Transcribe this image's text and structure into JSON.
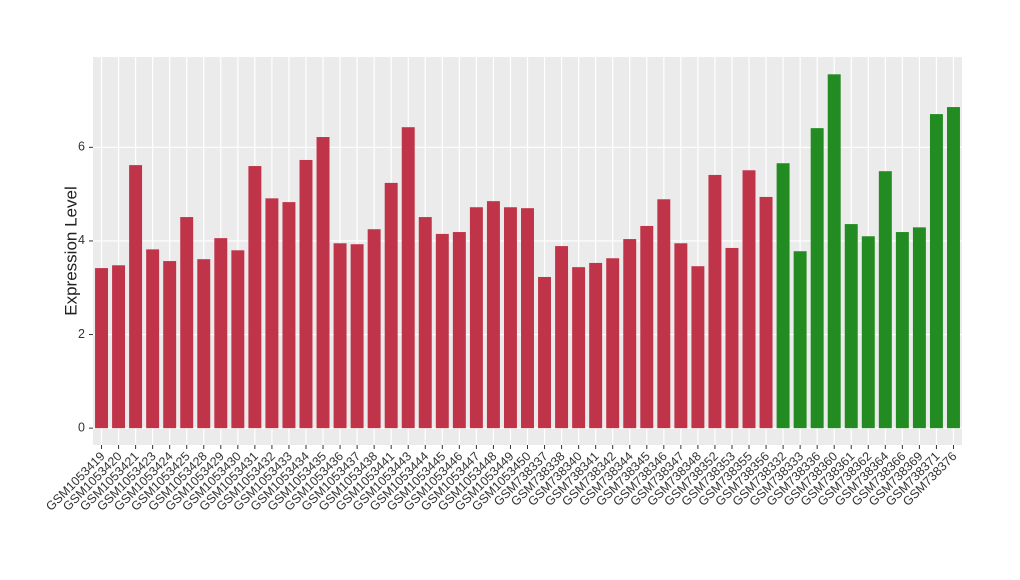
{
  "chart_data": {
    "type": "bar",
    "y_label": "Expression Level",
    "categories": [
      "GSM1053419",
      "GSM1053420",
      "GSM1053421",
      "GSM1053423",
      "GSM1053424",
      "GSM1053425",
      "GSM1053428",
      "GSM1053429",
      "GSM1053430",
      "GSM1053431",
      "GSM1053432",
      "GSM1053433",
      "GSM1053434",
      "GSM1053435",
      "GSM1053436",
      "GSM1053437",
      "GSM1053438",
      "GSM1053441",
      "GSM1053443",
      "GSM1053444",
      "GSM1053445",
      "GSM1053446",
      "GSM1053447",
      "GSM1053448",
      "GSM1053449",
      "GSM1053450",
      "GSM738337",
      "GSM738338",
      "GSM738340",
      "GSM738341",
      "GSM738342",
      "GSM738344",
      "GSM738345",
      "GSM738346",
      "GSM738347",
      "GSM738348",
      "GSM738352",
      "GSM738353",
      "GSM738355",
      "GSM738356",
      "GSM738332",
      "GSM738333",
      "GSM738336",
      "GSM738360",
      "GSM738361",
      "GSM738362",
      "GSM738364",
      "GSM738366",
      "GSM738369",
      "GSM738371",
      "GSM738376"
    ],
    "values": [
      3.42,
      3.48,
      5.62,
      3.82,
      3.57,
      4.51,
      3.61,
      4.06,
      3.8,
      5.6,
      4.91,
      4.83,
      5.73,
      6.22,
      3.95,
      3.93,
      4.25,
      5.24,
      6.43,
      4.51,
      4.15,
      4.19,
      4.72,
      4.85,
      4.72,
      4.7,
      3.23,
      3.89,
      3.44,
      3.53,
      3.63,
      4.04,
      4.32,
      4.89,
      3.95,
      3.46,
      5.41,
      3.85,
      5.51,
      4.94,
      5.66,
      3.78,
      6.41,
      7.56,
      4.36,
      4.1,
      5.49,
      4.19,
      4.29,
      6.71,
      6.86
    ],
    "colors": [
      "#c0344a",
      "#c0344a",
      "#c0344a",
      "#c0344a",
      "#c0344a",
      "#c0344a",
      "#c0344a",
      "#c0344a",
      "#c0344a",
      "#c0344a",
      "#c0344a",
      "#c0344a",
      "#c0344a",
      "#c0344a",
      "#c0344a",
      "#c0344a",
      "#c0344a",
      "#c0344a",
      "#c0344a",
      "#c0344a",
      "#c0344a",
      "#c0344a",
      "#c0344a",
      "#c0344a",
      "#c0344a",
      "#c0344a",
      "#c0344a",
      "#c0344a",
      "#c0344a",
      "#c0344a",
      "#c0344a",
      "#c0344a",
      "#c0344a",
      "#c0344a",
      "#c0344a",
      "#c0344a",
      "#c0344a",
      "#c0344a",
      "#c0344a",
      "#c0344a",
      "#228b22",
      "#228b22",
      "#228b22",
      "#228b22",
      "#228b22",
      "#228b22",
      "#228b22",
      "#228b22",
      "#228b22",
      "#228b22",
      "#228b22"
    ],
    "ylim": [
      -0.36,
      7.93
    ],
    "yticks": [
      0,
      2,
      4,
      6
    ],
    "grid": true
  }
}
